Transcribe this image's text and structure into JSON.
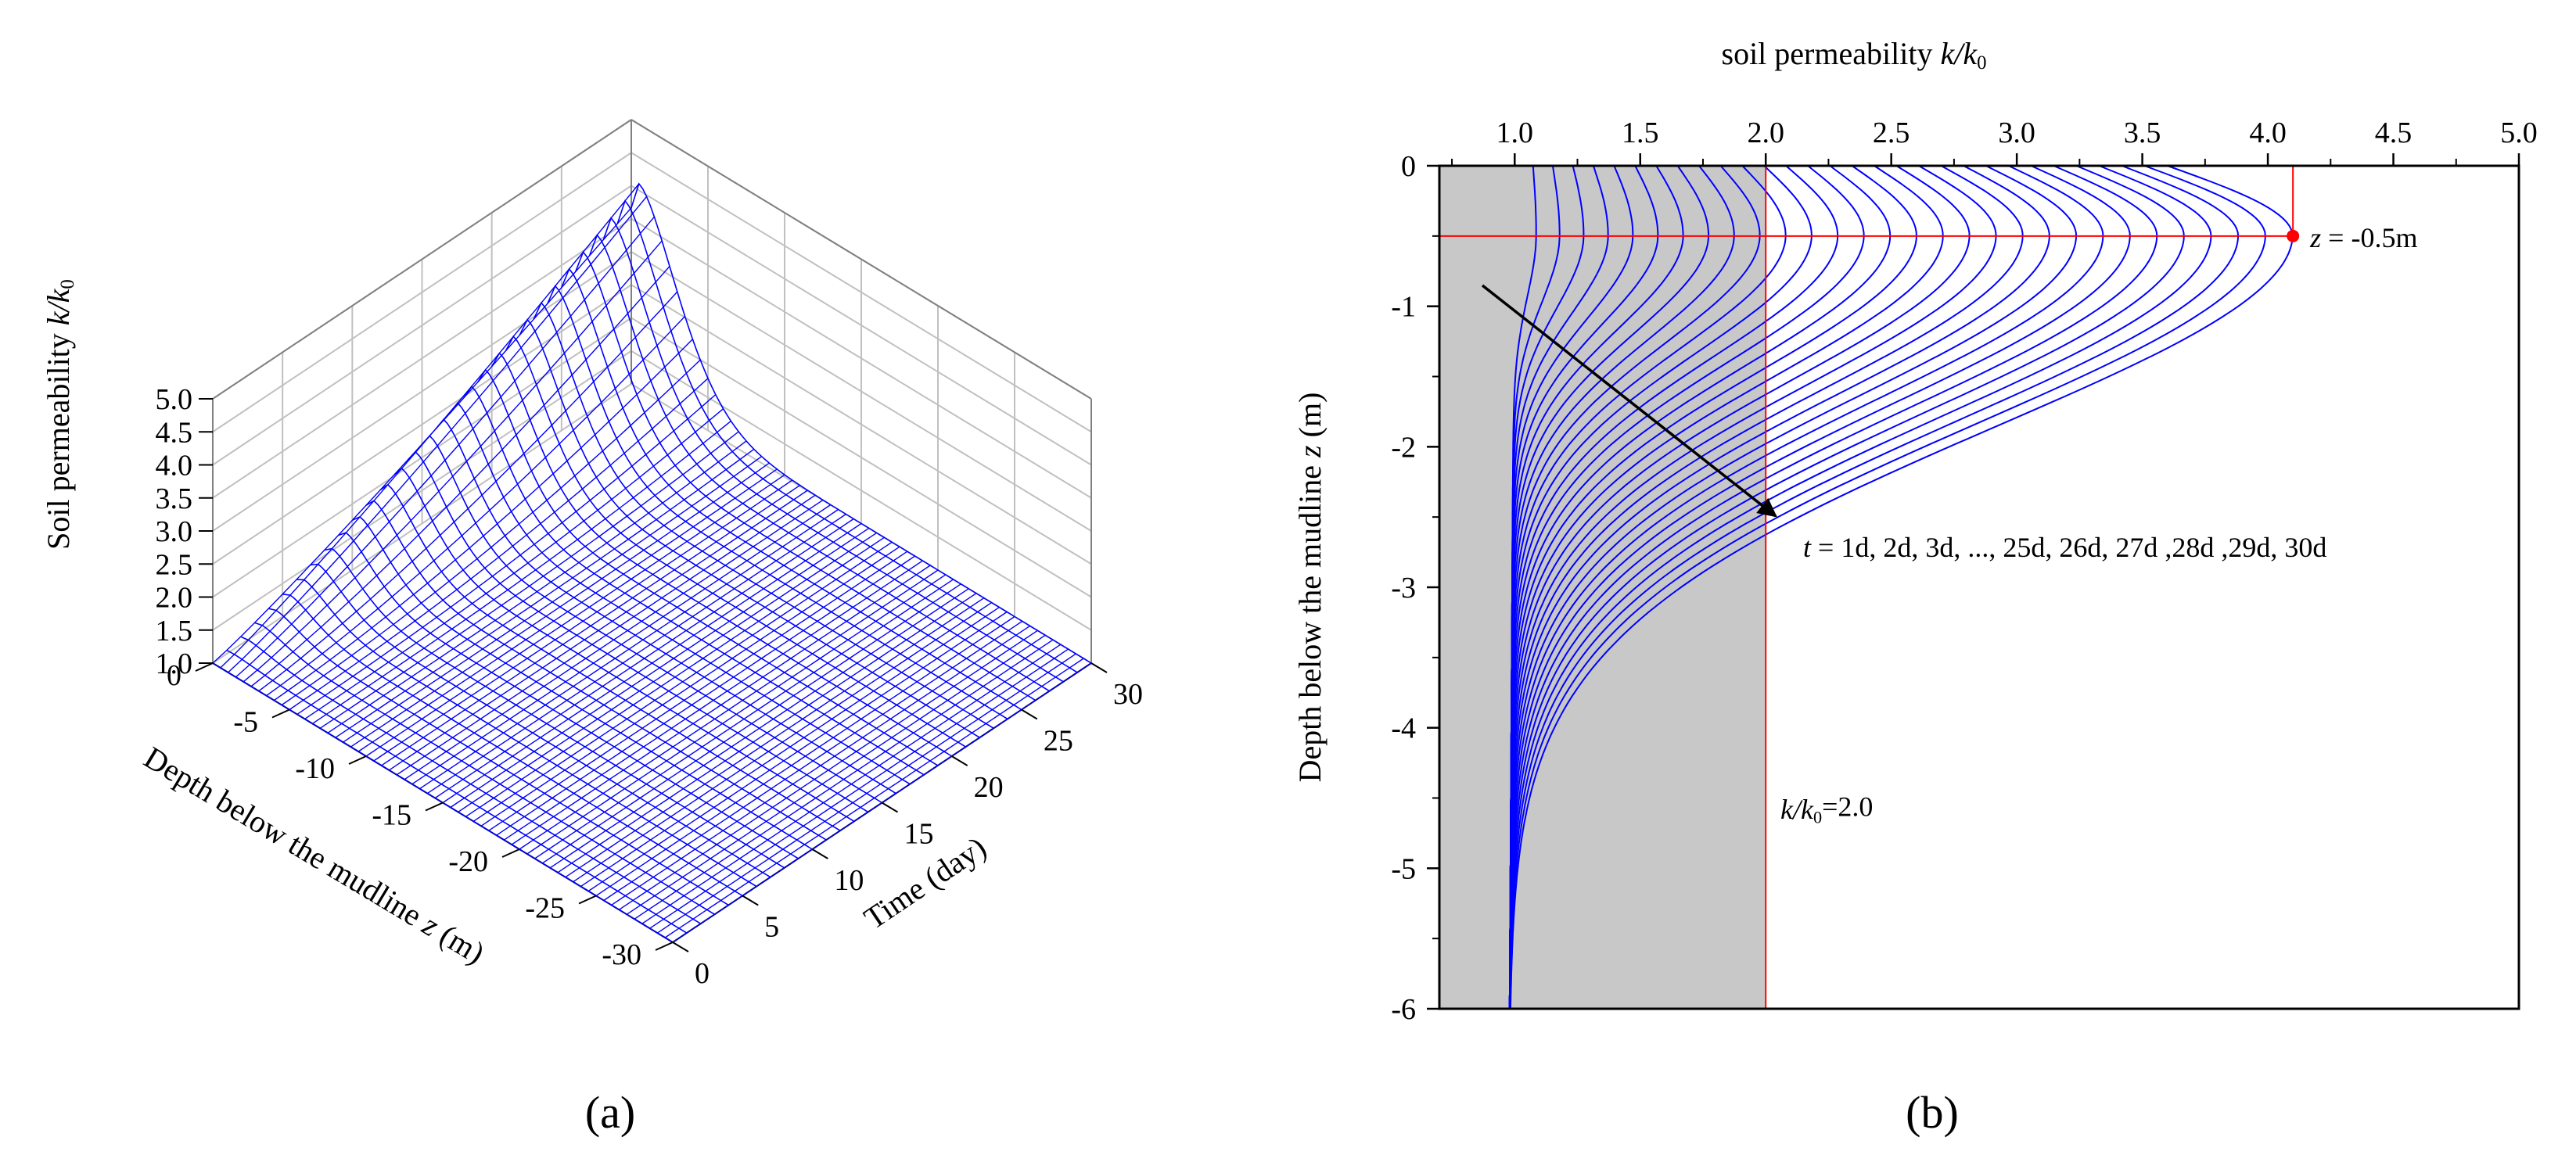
{
  "panels": {
    "a": {
      "label": "(a)"
    },
    "b": {
      "label": "(b)"
    }
  },
  "chart_data": [
    {
      "type": "surface",
      "panel": "(a)",
      "xlabel": "Depth below the mudline z (m)",
      "ylabel": "Time (day)",
      "zlabel": "Soil permeability k/k0",
      "x_ticks": [
        "0",
        "-5",
        "-10",
        "-15",
        "-20",
        "-25",
        "-30"
      ],
      "y_ticks": [
        "0",
        "5",
        "10",
        "15",
        "20",
        "25",
        "30"
      ],
      "z_ticks": [
        "1.0",
        "1.5",
        "2.0",
        "2.5",
        "3.0",
        "3.5",
        "4.0",
        "4.5",
        "5.0"
      ],
      "xlim": [
        -30,
        0
      ],
      "ylim": [
        0,
        30
      ],
      "zlim": [
        1.0,
        5.0
      ],
      "peak": {
        "z_m": -0.5,
        "t_day": 30,
        "k": 4.1
      },
      "grid": true,
      "color": "#0000ff"
    },
    {
      "type": "line",
      "panel": "(b)",
      "xlabel": "soil permeability k/k0",
      "ylabel": "Depth below the mudline z (m)",
      "x_ticks": [
        "1.0",
        "1.5",
        "2.0",
        "2.5",
        "3.0",
        "3.5",
        "4.0",
        "4.5",
        "5.0"
      ],
      "y_ticks": [
        "0",
        "-1",
        "-2",
        "-3",
        "-4",
        "-5",
        "-6"
      ],
      "xlim": [
        0.7,
        5.0
      ],
      "ylim": [
        -6,
        0
      ],
      "x_axis_position": "top",
      "series_count": 30,
      "series_days": [
        1,
        30
      ],
      "peak_depth": -0.5,
      "peak_k_final": 4.1,
      "surface_k_final": 3.6,
      "reference_k": 2.0,
      "shaded_region": {
        "x": [
          0.7,
          2.0
        ],
        "color": "#c8c8c8"
      },
      "line_color": "#0000ff",
      "ref_color": "#ff0000",
      "annotations": {
        "depth_marker": "z = -0.5m",
        "time_series": "t = 1d, 2d, 3d, ..., 25d, 26d, 27d ,28d ,29d, 30d",
        "reference": "k/k0=2.0"
      }
    }
  ]
}
